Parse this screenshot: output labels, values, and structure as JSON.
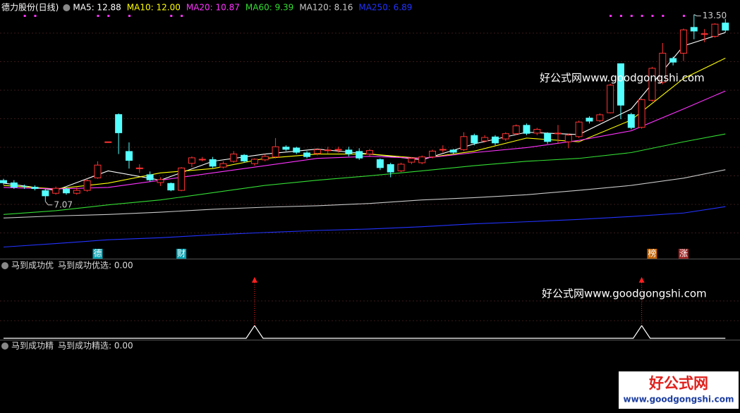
{
  "chart_data": [
    {
      "type": "candlestick",
      "title": "德力股份(日线)",
      "ylim": [
        5.1,
        14.0
      ],
      "up_color": "#ff3232",
      "down_color": "#54ffff",
      "open": [
        7.8,
        7.72,
        7.6,
        7.57,
        7.45,
        7.35,
        7.5,
        7.35,
        7.45,
        7.88,
        9.1,
        10.07,
        8.8,
        8.2,
        8.0,
        7.72,
        7.7,
        7.45,
        8.38,
        8.5,
        8.52,
        8.25,
        8.45,
        8.67,
        8.37,
        8.5,
        8.6,
        8.95,
        8.92,
        8.75,
        8.72,
        8.82,
        8.85,
        8.85,
        8.8,
        8.7,
        8.52,
        8.35,
        8.12,
        8.42,
        8.4,
        8.6,
        8.85,
        8.85,
        8.85,
        9.35,
        9.15,
        9.3,
        9.22,
        9.4,
        9.7,
        9.42,
        9.42,
        9.4,
        9.12,
        9.3,
        9.95,
        9.85,
        10.12,
        11.82,
        10.07,
        9.62,
        10.55,
        11.17,
        12.0,
        12.17,
        13.07,
        12.82,
        12.75,
        13.22
      ],
      "close": [
        7.7,
        7.55,
        7.58,
        7.5,
        7.25,
        7.52,
        7.35,
        7.45,
        7.78,
        8.32,
        9.12,
        9.42,
        8.47,
        8.22,
        7.8,
        7.82,
        7.45,
        8.22,
        8.57,
        8.52,
        8.27,
        8.37,
        8.7,
        8.45,
        8.52,
        8.62,
        8.95,
        8.85,
        8.75,
        8.6,
        8.85,
        8.84,
        8.86,
        8.7,
        8.55,
        8.82,
        8.22,
        8.07,
        8.35,
        8.55,
        8.6,
        8.8,
        8.86,
        8.75,
        9.3,
        9.07,
        9.27,
        9.07,
        9.4,
        9.67,
        9.4,
        9.55,
        9.12,
        9.42,
        9.35,
        9.8,
        9.82,
        10.05,
        11.07,
        10.37,
        9.6,
        10.57,
        11.65,
        12.17,
        11.85,
        12.97,
        12.92,
        12.84,
        13.17,
        12.95
      ],
      "high": [
        7.85,
        7.8,
        7.65,
        7.62,
        7.5,
        7.58,
        7.55,
        7.55,
        7.85,
        8.45,
        9.12,
        10.1,
        9.1,
        8.35,
        8.1,
        7.9,
        7.72,
        8.25,
        8.62,
        8.6,
        8.6,
        8.45,
        8.8,
        8.7,
        8.55,
        8.7,
        9.25,
        9.0,
        8.95,
        8.8,
        8.9,
        8.95,
        8.95,
        8.95,
        8.9,
        8.88,
        8.55,
        8.4,
        8.4,
        8.6,
        8.65,
        8.85,
        9.0,
        8.88,
        9.45,
        9.4,
        9.35,
        9.35,
        9.45,
        9.72,
        9.75,
        9.6,
        9.45,
        9.7,
        9.4,
        9.85,
        10.0,
        10.1,
        11.12,
        11.82,
        10.12,
        10.62,
        11.7,
        12.52,
        12.05,
        13.02,
        13.5,
        13.0,
        13.2,
        13.35
      ],
      "low": [
        7.65,
        7.5,
        7.5,
        7.45,
        7.07,
        7.3,
        7.3,
        7.3,
        7.4,
        7.85,
        9.1,
        8.7,
        8.2,
        8.05,
        7.75,
        7.6,
        7.42,
        7.42,
        8.25,
        8.45,
        8.22,
        8.2,
        8.4,
        8.4,
        8.3,
        8.45,
        8.55,
        8.8,
        8.7,
        8.55,
        8.65,
        8.72,
        8.75,
        8.62,
        8.5,
        8.6,
        8.15,
        7.9,
        8.08,
        8.35,
        8.35,
        8.55,
        8.75,
        8.7,
        8.8,
        9.0,
        9.1,
        9.0,
        9.15,
        9.35,
        9.35,
        9.35,
        9.05,
        9.05,
        8.9,
        9.25,
        9.75,
        9.8,
        10.1,
        9.9,
        9.55,
        9.57,
        10.5,
        11.1,
        11.75,
        11.9,
        12.65,
        12.55,
        12.7,
        12.88
      ],
      "ma_x": [
        0,
        5,
        10,
        15,
        20,
        25,
        30,
        35,
        40,
        45,
        50,
        55,
        60,
        65,
        69
      ],
      "series": [
        {
          "name": "MA5: 12.88",
          "color": "#ffffff",
          "values": [
            7.7,
            7.45,
            8.12,
            7.8,
            8.45,
            8.7,
            8.87,
            8.7,
            8.5,
            9.05,
            9.45,
            9.37,
            10.25,
            12.42,
            12.88
          ]
        },
        {
          "name": "MA10: 12.00",
          "color": "#ffff00",
          "values": [
            7.62,
            7.5,
            7.7,
            8.05,
            8.2,
            8.55,
            8.7,
            8.7,
            8.55,
            8.8,
            9.25,
            9.12,
            9.87,
            11.3,
            12.0
          ]
        },
        {
          "name": "MA20: 10.87",
          "color": "#ff33ff",
          "values": [
            7.55,
            7.5,
            7.55,
            7.8,
            8.05,
            8.3,
            8.55,
            8.62,
            8.55,
            8.75,
            8.92,
            9.17,
            9.5,
            10.25,
            10.87
          ]
        },
        {
          "name": "MA60: 9.39",
          "color": "#33dd33",
          "values": [
            6.62,
            6.75,
            6.95,
            7.12,
            7.37,
            7.62,
            7.8,
            7.95,
            8.12,
            8.3,
            8.45,
            8.55,
            8.75,
            9.12,
            9.39
          ]
        },
        {
          "name": "MA120: 8.16",
          "color": "#c8c8c8",
          "values": [
            6.5,
            6.57,
            6.62,
            6.7,
            6.8,
            6.87,
            6.92,
            7.0,
            7.12,
            7.2,
            7.3,
            7.45,
            7.62,
            7.87,
            8.16
          ]
        },
        {
          "name": "MA250: 6.89",
          "color": "#2233ff",
          "values": [
            5.5,
            5.62,
            5.75,
            5.82,
            5.92,
            6.0,
            6.07,
            6.12,
            6.2,
            6.3,
            6.37,
            6.45,
            6.55,
            6.67,
            6.89
          ]
        }
      ],
      "annotations": [
        {
          "label": "7.07",
          "value": 7.07,
          "index": 4
        },
        {
          "label": "13.50",
          "value": 13.5,
          "index": 66
        }
      ],
      "marker_indices": [
        2,
        3,
        9,
        10,
        12,
        16,
        17,
        58,
        59,
        60,
        61,
        62,
        63,
        65
      ],
      "badges": [
        {
          "text": "德",
          "index": 9,
          "color": "#00a0b0"
        },
        {
          "text": "财",
          "index": 17,
          "color": "#00a0b0"
        },
        {
          "text": "榜",
          "index": 62,
          "color": "#c06000"
        },
        {
          "text": "涨",
          "index": 65,
          "color": "#a02020"
        }
      ],
      "watermark": "好公式网www.goodgongshi.com"
    },
    {
      "type": "signal",
      "title": "马到成功优",
      "series": [
        {
          "name": "马到成功优选: 0.00",
          "color": "#ffffff",
          "values": [
            0,
            0,
            0,
            0,
            0,
            0,
            0,
            0,
            0,
            0,
            0,
            0,
            0,
            0,
            0,
            0,
            0,
            0,
            0,
            0,
            0,
            0,
            0,
            0,
            1,
            0,
            0,
            0,
            0,
            0,
            0,
            0,
            0,
            0,
            0,
            0,
            0,
            0,
            0,
            0,
            0,
            0,
            0,
            0,
            0,
            0,
            0,
            0,
            0,
            0,
            0,
            0,
            0,
            0,
            0,
            0,
            0,
            0,
            0,
            0,
            0,
            1,
            0,
            0,
            0,
            0,
            0,
            0,
            0,
            0
          ]
        }
      ],
      "arrow_color": "#ff2020"
    },
    {
      "type": "signal",
      "title": "马到成功精",
      "series": [
        {
          "name": "马到成功精选: 0.00",
          "color": "#ffffff",
          "values": []
        }
      ]
    }
  ],
  "logo": {
    "title": "好公式网",
    "url": "www.goodgongshi.com"
  }
}
